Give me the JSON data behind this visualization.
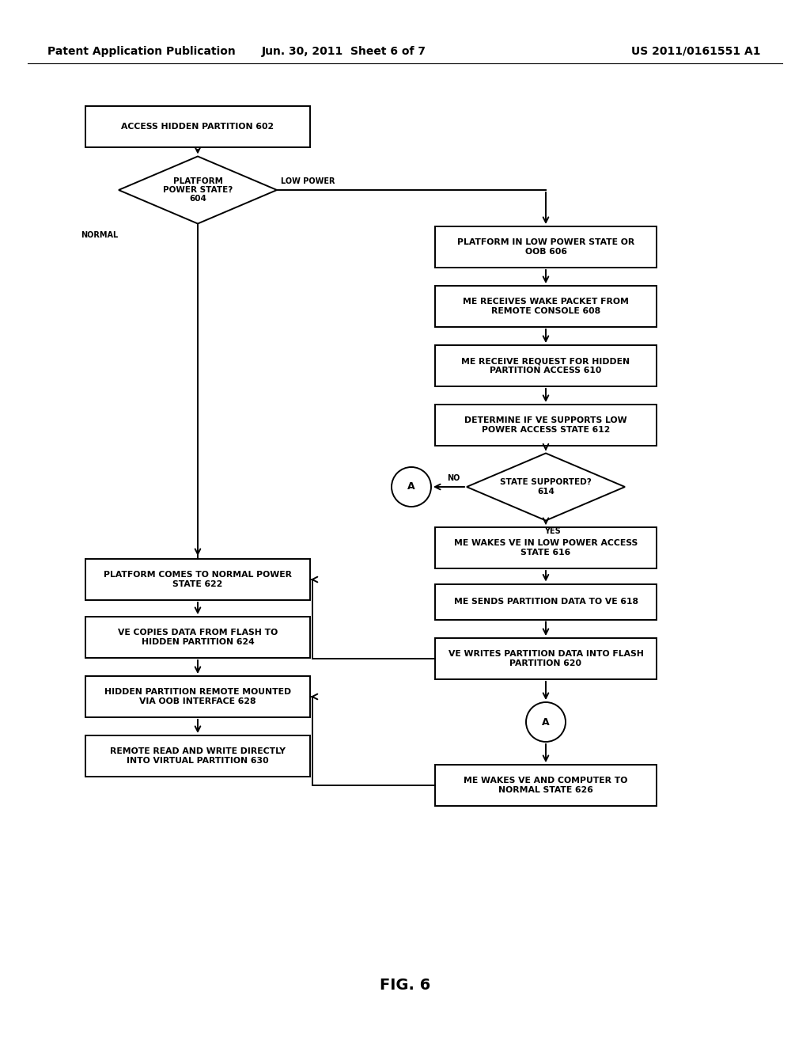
{
  "bg_color": "#ffffff",
  "header_left": "Patent Application Publication",
  "header_mid": "Jun. 30, 2011  Sheet 6 of 7",
  "header_right": "US 2011/0161551 A1",
  "footer": "FIG. 6",
  "fig_width": 10.24,
  "fig_height": 13.2,
  "font_size_box": 7.8,
  "font_size_diamond": 7.5,
  "font_size_label": 7.0,
  "font_size_header": 10,
  "font_size_footer": 14,
  "lw": 1.4
}
